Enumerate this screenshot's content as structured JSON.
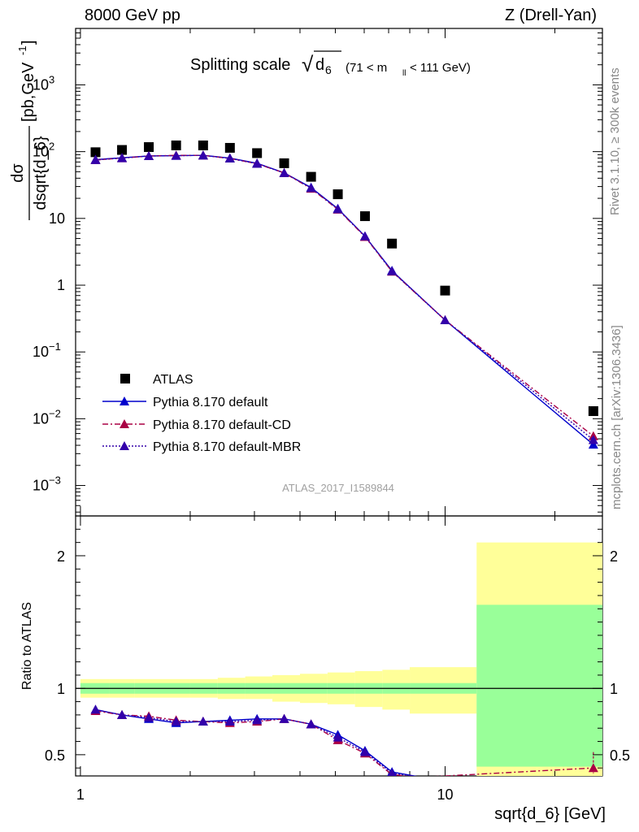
{
  "header": {
    "left": "8000 GeV pp",
    "right": "Z (Drell-Yan)"
  },
  "side_text": {
    "rivet": "Rivet 3.1.10, ≥ 300k events",
    "mcplots": "mcplots.cern.ch [arXiv:1306.3436]"
  },
  "analysis_id": "ATLAS_2017_I1589844",
  "colors": {
    "atlas": "#000000",
    "default": "#0000cc",
    "cd": "#aa0044",
    "mbr": "#3300aa",
    "band_yellow": "#ffff99",
    "band_green": "#99ff99"
  },
  "chart_data": [
    {
      "type": "scatter",
      "panel": "main",
      "title": "Splitting scale",
      "title_symbol": "d",
      "title_subscript": "6",
      "title_cut": "(71 < m",
      "title_cut_sub": "ll",
      "title_cut_end": "< 111 GeV)",
      "ylabel": "dσ/dsqrt{d_6} [pb,GeV⁻¹]",
      "ylabel_num": "dσ",
      "ylabel_den": "dsqrt{d_6}",
      "ylabel_unit": "[pb,GeV",
      "ylabel_unit_sup": "-1",
      "ylabel_unit_end": "]",
      "xscale": "log",
      "yscale": "log",
      "xlim": [
        0.97,
        27
      ],
      "ylim": [
        0.00035,
        7000
      ],
      "yticks": [
        {
          "v": 0.001,
          "base": "10",
          "exp": "−3"
        },
        {
          "v": 0.01,
          "base": "10",
          "exp": "−2"
        },
        {
          "v": 0.1,
          "base": "10",
          "exp": "−1"
        },
        {
          "v": 1,
          "base": "1",
          "exp": ""
        },
        {
          "v": 10,
          "base": "10",
          "exp": ""
        },
        {
          "v": 100,
          "base": "10",
          "exp": "2"
        },
        {
          "v": 1000,
          "base": "10",
          "exp": "3"
        }
      ],
      "legend_position": "bottom-left",
      "series": [
        {
          "name": "ATLAS",
          "marker": "square",
          "x": [
            1.1,
            1.3,
            1.54,
            1.83,
            2.17,
            2.57,
            3.05,
            3.62,
            4.29,
            5.08,
            6.03,
            7.15,
            10.0,
            25.5
          ],
          "y": [
            98,
            106,
            117,
            124,
            124,
            114,
            95,
            67,
            42,
            23,
            10.8,
            4.2,
            0.83,
            0.013
          ]
        },
        {
          "name": "Pythia 8.170 default",
          "marker": "triangle",
          "linestyle": "solid",
          "x": [
            1.1,
            1.3,
            1.54,
            1.83,
            2.17,
            2.57,
            3.05,
            3.62,
            4.29,
            5.08,
            6.03,
            7.15,
            10.0,
            25.5
          ],
          "y": [
            76,
            81,
            86,
            87,
            88,
            80,
            67,
            48,
            29,
            14,
            5.4,
            1.65,
            0.3,
            0.0041
          ]
        },
        {
          "name": "Pythia 8.170 default-CD",
          "marker": "triangle",
          "linestyle": "dashdot",
          "x": [
            1.1,
            1.3,
            1.54,
            1.83,
            2.17,
            2.57,
            3.05,
            3.62,
            4.29,
            5.08,
            6.03,
            7.15,
            10.0,
            25.5
          ],
          "y": [
            75,
            80,
            86,
            88,
            88,
            79,
            66,
            48,
            28,
            13.6,
            5.3,
            1.6,
            0.3,
            0.0055
          ]
        },
        {
          "name": "Pythia 8.170 default-MBR",
          "marker": "triangle",
          "linestyle": "dotted",
          "x": [
            1.1,
            1.3,
            1.54,
            1.83,
            2.17,
            2.57,
            3.05,
            3.62,
            4.29,
            5.08,
            6.03,
            7.15,
            10.0,
            25.5
          ],
          "y": [
            75,
            80,
            86,
            87,
            88,
            79,
            66,
            48,
            28.5,
            13.8,
            5.4,
            1.62,
            0.3,
            0.0048
          ]
        }
      ]
    },
    {
      "type": "line",
      "panel": "ratio",
      "ylabel": "Ratio to ATLAS",
      "xlabel": "sqrt{d_6} [GeV]",
      "xscale": "log",
      "xlim": [
        0.97,
        27
      ],
      "ylim": [
        0.34,
        2.3
      ],
      "xticks": [
        {
          "v": 1,
          "label": "1"
        },
        {
          "v": 10,
          "label": "10"
        }
      ],
      "yticks": [
        {
          "v": 0.5,
          "label": "0.5"
        },
        {
          "v": 1,
          "label": "1"
        },
        {
          "v": 2,
          "label": "2"
        }
      ],
      "bands": {
        "edges": [
          1.0,
          1.2,
          1.41,
          1.68,
          2.0,
          2.38,
          2.83,
          3.36,
          4.0,
          4.76,
          5.66,
          6.73,
          8.0,
          12.2,
          27
        ],
        "yellow_lo": [
          0.93,
          0.93,
          0.93,
          0.93,
          0.93,
          0.92,
          0.92,
          0.9,
          0.89,
          0.88,
          0.86,
          0.84,
          0.81,
          0.34
        ],
        "yellow_hi": [
          1.07,
          1.07,
          1.07,
          1.07,
          1.07,
          1.08,
          1.09,
          1.1,
          1.11,
          1.12,
          1.13,
          1.14,
          1.16,
          2.1
        ],
        "green_lo": [
          0.96,
          0.96,
          0.96,
          0.96,
          0.96,
          0.96,
          0.96,
          0.96,
          0.96,
          0.96,
          0.96,
          0.96,
          0.96,
          0.41
        ],
        "green_hi": [
          1.04,
          1.04,
          1.04,
          1.04,
          1.04,
          1.04,
          1.04,
          1.04,
          1.04,
          1.04,
          1.04,
          1.04,
          1.04,
          1.63
        ]
      },
      "series": [
        {
          "name": "Pythia 8.170 default",
          "x": [
            1.1,
            1.3,
            1.54,
            1.83,
            2.17,
            2.57,
            3.05,
            3.62,
            4.29,
            5.08,
            6.03,
            7.15,
            8.6
          ],
          "y": [
            0.84,
            0.8,
            0.77,
            0.74,
            0.75,
            0.76,
            0.77,
            0.77,
            0.73,
            0.65,
            0.53,
            0.37,
            0.33
          ]
        },
        {
          "name": "Pythia 8.170 default-CD",
          "x": [
            1.1,
            1.3,
            1.54,
            1.83,
            2.17,
            2.57,
            3.05,
            3.62,
            4.29,
            5.08,
            6.03,
            7.15,
            8.6,
            25.5
          ],
          "y": [
            0.83,
            0.8,
            0.79,
            0.76,
            0.75,
            0.74,
            0.75,
            0.77,
            0.73,
            0.61,
            0.51,
            0.35,
            0.33,
            0.4
          ]
        },
        {
          "name": "Pythia 8.170 default-MBR",
          "x": [
            1.1,
            1.3,
            1.54,
            1.83,
            2.17,
            2.57,
            3.05,
            3.62,
            4.29,
            5.08,
            6.03,
            7.15,
            8.6
          ],
          "y": [
            0.84,
            0.8,
            0.78,
            0.75,
            0.75,
            0.75,
            0.76,
            0.77,
            0.73,
            0.63,
            0.52,
            0.36,
            0.33
          ]
        }
      ]
    }
  ]
}
